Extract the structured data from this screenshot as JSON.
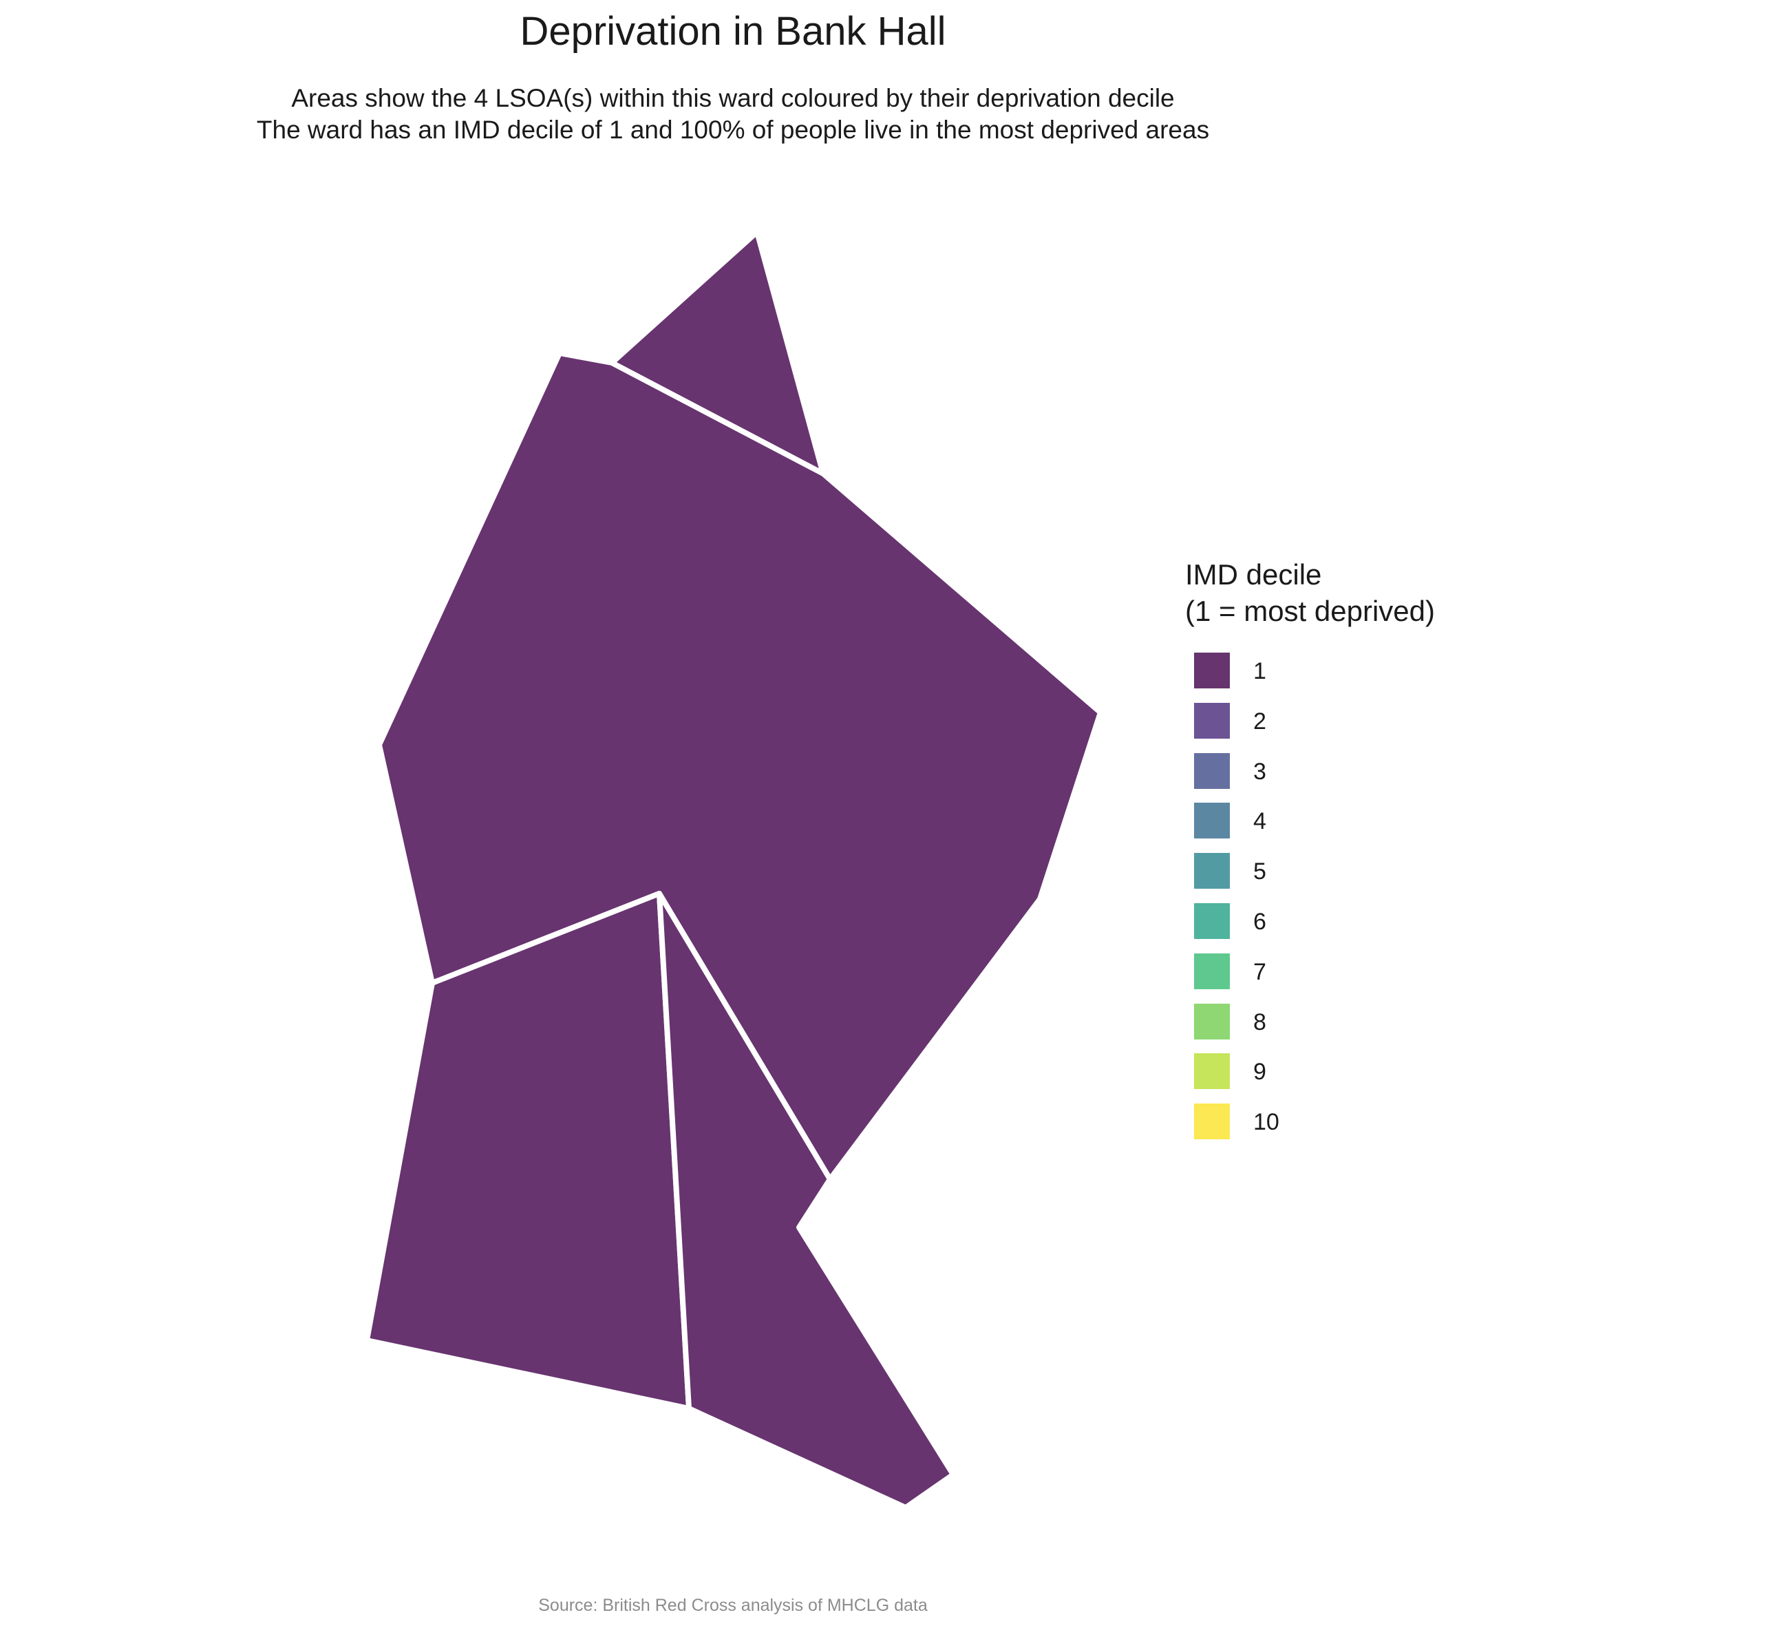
{
  "header": {
    "title": "Deprivation in Bank Hall",
    "subtitle_line1": "Areas show the 4 LSOA(s) within this ward coloured by their deprivation decile",
    "subtitle_line2": "The ward has an IMD decile of 1 and 100% of people live in the most deprived areas"
  },
  "map": {
    "areas": [
      {
        "decile": 1,
        "color": "#67346f"
      },
      {
        "decile": 1,
        "color": "#67346f"
      },
      {
        "decile": 1,
        "color": "#67346f"
      },
      {
        "decile": 1,
        "color": "#67346f"
      }
    ]
  },
  "legend": {
    "title_line1": "IMD decile",
    "title_line2": "(1 = most deprived)",
    "items": [
      {
        "label": "1",
        "color": "#67346f"
      },
      {
        "label": "2",
        "color": "#6b5394"
      },
      {
        "label": "3",
        "color": "#6670a0"
      },
      {
        "label": "4",
        "color": "#5b87a3"
      },
      {
        "label": "5",
        "color": "#529ba3"
      },
      {
        "label": "6",
        "color": "#4fb39d"
      },
      {
        "label": "7",
        "color": "#5fc88e"
      },
      {
        "label": "8",
        "color": "#8ed772"
      },
      {
        "label": "9",
        "color": "#c7e55a"
      },
      {
        "label": "10",
        "color": "#fbe852"
      }
    ]
  },
  "caption": "Source: British Red Cross analysis of MHCLG data"
}
